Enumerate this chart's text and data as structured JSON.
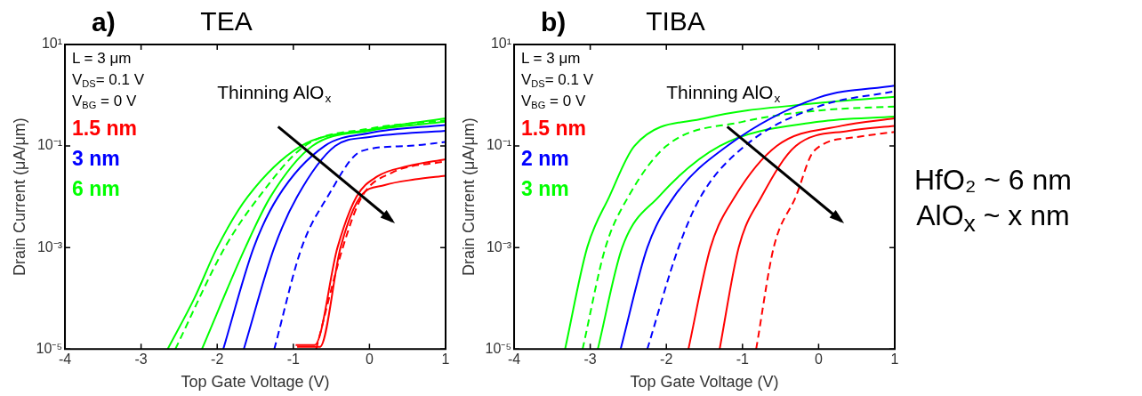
{
  "chart_data": [
    {
      "type": "line",
      "title": "TEA",
      "xlabel": "Top Gate Voltage (V)",
      "ylabel": "Drain Current (μA/μm)",
      "xlim": [
        -4,
        1
      ],
      "xticks": [
        -4,
        -3,
        -2,
        -1,
        0,
        1
      ],
      "ylim": [
        1e-05,
        10
      ],
      "yticks": [
        {
          "value": 10,
          "label": "10¹"
        },
        {
          "value": 0.1,
          "label": "10⁻¹"
        },
        {
          "value": 0.001,
          "label": "10⁻³"
        },
        {
          "value": 1e-05,
          "label": "10⁻⁵"
        }
      ],
      "log": "y",
      "legend": "top left",
      "marker": "none",
      "annotations": [
        "a)",
        "L = 3 μm",
        "V$_{DS}$= 0.1 V",
        "V$_{BG}$ = 0 V",
        "Thinning AlO$_{x}$"
      ],
      "series": [
        {
          "name": "1.5 nm",
          "color": "#ff0000",
          "line_style": "solid",
          "x": [
            -0.97,
            -0.72,
            -0.42,
            -0.17,
            0.1,
            0.5,
            1
          ],
          "values": [
            1.2e-05,
            1.2e-05,
            0.001,
            0.01,
            0.025,
            0.04,
            0.055
          ]
        },
        {
          "color": "#ff0000",
          "line_style": "solid",
          "x": [
            -0.95,
            -0.65,
            -0.38,
            -0.12,
            0.2,
            0.6,
            1
          ],
          "values": [
            1.1e-05,
            1.1e-05,
            0.001,
            0.01,
            0.017,
            0.022,
            0.026
          ]
        },
        {
          "color": "#ff0000",
          "line_style": "dashed",
          "x": [
            -0.7,
            -0.35,
            -0.1,
            0.3,
            1
          ],
          "values": [
            1e-05,
            0.001,
            0.01,
            0.03,
            0.05
          ]
        },
        {
          "name": "3 nm",
          "color": "#0000ff",
          "line_style": "solid",
          "x": [
            -1.92,
            -1.52,
            -1.2,
            -0.59,
            0,
            1
          ],
          "values": [
            1e-05,
            0.001,
            0.01,
            0.1,
            0.18,
            0.26
          ]
        },
        {
          "color": "#0000ff",
          "line_style": "solid",
          "x": [
            -1.65,
            -1.25,
            -0.95,
            -0.45,
            0,
            1
          ],
          "values": [
            1e-05,
            0.001,
            0.01,
            0.1,
            0.15,
            0.2
          ]
        },
        {
          "color": "#0000ff",
          "line_style": "dashed",
          "x": [
            -1.25,
            -0.89,
            -0.55,
            -0.1,
            0.5,
            1
          ],
          "values": [
            1e-05,
            0.001,
            0.01,
            0.08,
            0.1,
            0.12
          ]
        },
        {
          "name": "6 nm",
          "color": "#00ff00",
          "line_style": "solid",
          "x": [
            -2.65,
            -2.3,
            -2.0,
            -1.6,
            -0.9,
            0,
            1
          ],
          "values": [
            1e-05,
            0.0001,
            0.001,
            0.01,
            0.1,
            0.21,
            0.35
          ]
        },
        {
          "color": "#00ff00",
          "line_style": "dashed",
          "x": [
            -2.55,
            -1.9,
            -1.45,
            -0.85,
            0,
            1
          ],
          "values": [
            1e-05,
            0.001,
            0.01,
            0.1,
            0.22,
            0.32
          ]
        },
        {
          "color": "#00ff00",
          "line_style": "solid",
          "x": [
            -2.2,
            -1.63,
            -1.3,
            -0.75,
            0,
            1
          ],
          "values": [
            1e-05,
            0.001,
            0.01,
            0.1,
            0.2,
            0.3
          ]
        }
      ]
    },
    {
      "type": "line",
      "title": "TIBA",
      "xlabel": "Top Gate Voltage (V)",
      "ylabel": "Drain Current (μA/μm)",
      "xlim": [
        -4,
        1
      ],
      "xticks": [
        -4,
        -3,
        -2,
        -1,
        0,
        1
      ],
      "ylim": [
        1e-05,
        10
      ],
      "yticks": [
        {
          "value": 10,
          "label": "10¹"
        },
        {
          "value": 0.1,
          "label": "10⁻¹"
        },
        {
          "value": 0.001,
          "label": "10⁻³"
        },
        {
          "value": 1e-05,
          "label": "10⁻⁵"
        }
      ],
      "log": "y",
      "legend": "top left",
      "marker": "none",
      "annotations": [
        "b)",
        "L = 3 μm",
        "V$_{DS}$= 0.1 V",
        "V$_{BG}$ = 0 V",
        "Thinning AlO$_{x}$",
        "HfO₂ ~ 6 nm",
        "AlO$_{x}$ ~ x nm"
      ],
      "series": [
        {
          "name": "1.5 nm",
          "color": "#ff0000",
          "line_style": "solid",
          "x": [
            -1.71,
            -1.42,
            -1.1,
            -0.55,
            0.3,
            1
          ],
          "values": [
            1e-05,
            0.001,
            0.01,
            0.1,
            0.25,
            0.35
          ]
        },
        {
          "color": "#ff0000",
          "line_style": "solid",
          "x": [
            -1.3,
            -1.05,
            -0.75,
            -0.3,
            0.4,
            1
          ],
          "values": [
            1e-05,
            0.001,
            0.01,
            0.1,
            0.2,
            0.25
          ]
        },
        {
          "color": "#ff0000",
          "line_style": "dashed",
          "x": [
            -0.82,
            -0.59,
            -0.3,
            -0.06,
            0.5,
            1
          ],
          "values": [
            1e-05,
            0.001,
            0.01,
            0.08,
            0.15,
            0.19
          ]
        },
        {
          "name": "2 nm",
          "color": "#0000ff",
          "line_style": "solid",
          "x": [
            -2.6,
            -2.25,
            -1.9,
            -1.2,
            0,
            1
          ],
          "values": [
            1e-05,
            0.001,
            0.01,
            0.1,
            0.9,
            1.55
          ]
        },
        {
          "color": "#0000ff",
          "line_style": "dashed",
          "x": [
            -2.25,
            -1.84,
            -1.55,
            -0.97,
            0,
            1
          ],
          "values": [
            1e-05,
            0.001,
            0.01,
            0.1,
            0.6,
            1.2
          ]
        },
        {
          "name": "3 nm",
          "color": "#00ff00",
          "line_style": "solid",
          "x": [
            -3.33,
            -3.04,
            -2.75,
            -2.42,
            -1.5,
            0,
            1
          ],
          "values": [
            1e-05,
            0.001,
            0.01,
            0.1,
            0.35,
            0.7,
            0.93
          ]
        },
        {
          "color": "#00ff00",
          "line_style": "dashed",
          "x": [
            -3.1,
            -2.8,
            -2.5,
            -2.0,
            -1,
            0,
            1
          ],
          "values": [
            1e-05,
            0.001,
            0.01,
            0.1,
            0.3,
            0.5,
            0.6
          ]
        },
        {
          "color": "#00ff00",
          "line_style": "solid",
          "x": [
            -2.9,
            -2.58,
            -2.1,
            -1.3,
            0,
            1
          ],
          "values": [
            1e-05,
            0.001,
            0.01,
            0.1,
            0.3,
            0.38
          ]
        }
      ]
    }
  ]
}
